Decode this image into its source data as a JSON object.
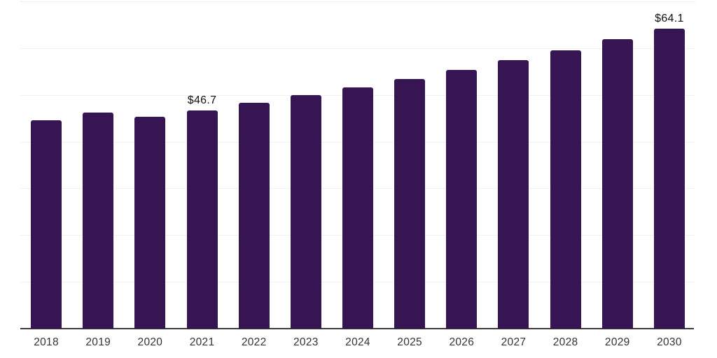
{
  "chart_data": {
    "type": "bar",
    "title": "",
    "xlabel": "",
    "ylabel": "",
    "categories": [
      "2018",
      "2019",
      "2020",
      "2021",
      "2022",
      "2023",
      "2024",
      "2025",
      "2026",
      "2027",
      "2028",
      "2029",
      "2030"
    ],
    "values": [
      44.6,
      46.2,
      45.3,
      46.7,
      48.3,
      50.0,
      51.6,
      53.4,
      55.3,
      57.4,
      59.5,
      61.9,
      64.1
    ],
    "data_labels": [
      null,
      null,
      null,
      "$46.7",
      null,
      null,
      null,
      null,
      null,
      null,
      null,
      null,
      "$64.1"
    ],
    "ylim": [
      0,
      70
    ],
    "gridline_step": 10,
    "grid": true,
    "legend": false,
    "colors": {
      "bar": "#371553",
      "axis_line": "#3b3b3b",
      "gridline": "#f1f1f3",
      "value_label": "#121212",
      "tick_label": "#333333"
    }
  }
}
